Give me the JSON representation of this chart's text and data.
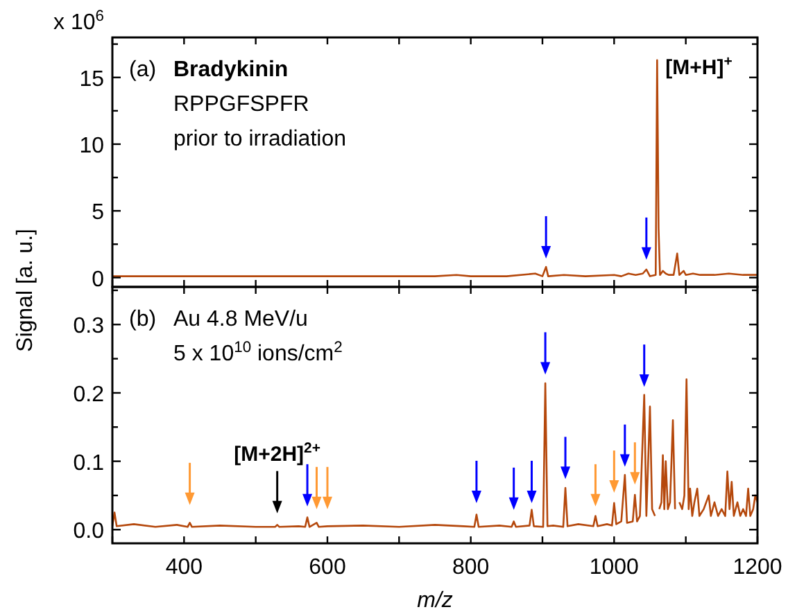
{
  "chart_data": [
    {
      "type": "line",
      "title": "Bradykinin",
      "subtitle": "x 10$^{6}$",
      "ylabel": "Signal [a. u.]",
      "tick_labels": "y",
      "xlim": [
        300,
        1200
      ],
      "ylim": [
        -0.7,
        18
      ],
      "xticks": [
        {
          "value": 300,
          "label": null
        },
        {
          "value": 400,
          "label": null
        },
        {
          "value": 500,
          "label": null
        },
        {
          "value": 600,
          "label": null
        },
        {
          "value": 700,
          "label": null
        },
        {
          "value": 800,
          "label": null
        },
        {
          "value": 900,
          "label": null
        },
        {
          "value": 1000,
          "label": null
        },
        {
          "value": 1100,
          "label": null
        },
        {
          "value": 1200,
          "label": null
        }
      ],
      "yticks": [
        0,
        {
          "value": 2.5,
          "label": null
        },
        5,
        {
          "value": 7.5,
          "label": null
        },
        10,
        {
          "value": 12.5,
          "label": null
        },
        15,
        {
          "value": 17.5,
          "label": null
        }
      ],
      "annotations": [
        "(a)",
        "RPPGFSPFR",
        "prior to irradiation",
        {
          "text": "[M+H]$^{+}$",
          "x": 1060,
          "y": 16.3
        }
      ],
      "series": [
        {
          "color": "#b5480c",
          "x": [
            300,
            400,
            500,
            600,
            700,
            750,
            780,
            800,
            850,
            890,
            900,
            905,
            908,
            930,
            960,
            1000,
            1010,
            1020,
            1030,
            1040,
            1045,
            1050,
            1058,
            1060,
            1061,
            1062,
            1064,
            1068,
            1072,
            1076,
            1083,
            1088,
            1091,
            1097,
            1100,
            1110,
            1120,
            1140,
            1160,
            1180,
            1200
          ],
          "values": [
            0.1,
            0.1,
            0.1,
            0.1,
            0.1,
            0.1,
            0.2,
            0.1,
            0.1,
            0.3,
            0.1,
            0.8,
            0.1,
            0.2,
            0.1,
            0.2,
            0.1,
            0.3,
            0.2,
            0.3,
            0.6,
            0.1,
            0.2,
            16.3,
            10.3,
            3.7,
            0.2,
            0.5,
            0.3,
            0.2,
            0.2,
            1.8,
            0.2,
            0.5,
            0.2,
            0.3,
            0.2,
            0.2,
            0.3,
            0.2,
            0.2
          ]
        },
        {
          "type": "scatter",
          "marker": "triangle",
          "color": "#0000ff",
          "x": [
            905,
            1045
          ],
          "values": [
            1.9,
            1.8
          ]
        }
      ]
    },
    {
      "type": "line",
      "xlabel": "m/z",
      "xlim": [
        300,
        1200
      ],
      "ylim": [
        -0.02,
        0.355
      ],
      "xticks": [
        {
          "value": 300,
          "label": null
        },
        400,
        {
          "value": 500,
          "label": null
        },
        600,
        {
          "value": 700,
          "label": null
        },
        800,
        {
          "value": 900,
          "label": null
        },
        1000,
        {
          "value": 1100,
          "label": null
        },
        1200
      ],
      "yticks": [
        {
          "value": 0,
          "label": "0.0"
        },
        {
          "value": 0.05,
          "label": null
        },
        0.1,
        {
          "value": 0.15,
          "label": null
        },
        0.2,
        {
          "value": 0.25,
          "label": null
        },
        0.3,
        {
          "value": 0.35,
          "label": null
        }
      ],
      "annotations": [
        "(b)",
        "Au 4.8 MeV/u",
        "5 x 10$^{10}$ ions/cm$^{2}$",
        {
          "text": "[M+2H]$^{2+}$",
          "x": 530,
          "y": 0.007
        }
      ],
      "series": [
        {
          "color": "#b5480c",
          "x": [
            300,
            303,
            306,
            330,
            360,
            390,
            405,
            408,
            411,
            450,
            500,
            527,
            530,
            533,
            560,
            569,
            572,
            575,
            585,
            588,
            600,
            650,
            700,
            750,
            790,
            805,
            808,
            811,
            840,
            857,
            860,
            863,
            882,
            885,
            888,
            901,
            904,
            907,
            915,
            929,
            932,
            935,
            950,
            971,
            974,
            977,
            990,
            997,
            1000,
            1003,
            1010,
            1015,
            1018,
            1026,
            1029,
            1032,
            1036,
            1042,
            1045,
            1050,
            1053,
            1057,
            1060,
            1063,
            1066,
            1068,
            1070,
            1072,
            1075,
            1078,
            1082,
            1085,
            1088,
            1091,
            1095,
            1098,
            1101,
            1104,
            1106,
            1109,
            1112,
            1116,
            1119,
            1125,
            1132,
            1135,
            1140,
            1145,
            1150,
            1155,
            1158,
            1161,
            1164,
            1167,
            1172,
            1176,
            1180,
            1184,
            1187,
            1190,
            1194,
            1197,
            1200
          ],
          "values": [
            0.005,
            0.025,
            0.005,
            0.008,
            0.004,
            0.007,
            0.004,
            0.01,
            0.004,
            0.006,
            0.004,
            0.004,
            0.007,
            0.004,
            0.005,
            0.004,
            0.018,
            0.004,
            0.01,
            0.004,
            0.005,
            0.006,
            0.004,
            0.007,
            0.005,
            0.004,
            0.022,
            0.004,
            0.006,
            0.004,
            0.012,
            0.004,
            0.006,
            0.029,
            0.005,
            0.004,
            0.214,
            0.005,
            0.006,
            0.004,
            0.061,
            0.005,
            0.008,
            0.005,
            0.02,
            0.005,
            0.008,
            0.006,
            0.039,
            0.008,
            0.012,
            0.08,
            0.01,
            0.012,
            0.051,
            0.012,
            0.02,
            0.197,
            0.02,
            0.18,
            0.03,
            0.02,
            null,
            0.03,
            0.04,
            0.109,
            0.03,
            0.1,
            0.03,
            0.04,
            0.16,
            0.03,
            null,
            0.04,
            0.03,
            0.05,
            0.22,
            0.03,
            0.06,
            0.02,
            0.04,
            0.06,
            0.02,
            0.03,
            0.05,
            0.02,
            0.04,
            0.02,
            0.03,
            0.02,
            0.085,
            0.03,
            0.07,
            0.02,
            0.04,
            0.02,
            0.03,
            0.02,
            0.06,
            0.02,
            0.03,
            0.05,
            0.04
          ]
        },
        {
          "type": "scatter",
          "marker": "triangle",
          "color": "#0000ff",
          "x": [
            572,
            808,
            860,
            885,
            904,
            932,
            1015,
            1042
          ],
          "values": [
            0.043,
            0.048,
            0.038,
            0.048,
            0.236,
            0.083,
            0.101,
            0.218
          ]
        },
        {
          "type": "scatter",
          "marker": "triangle",
          "color": "#ff9933",
          "x": [
            408,
            585,
            600,
            974,
            1000,
            1029
          ],
          "values": [
            0.045,
            0.039,
            0.039,
            0.043,
            0.063,
            0.075
          ]
        },
        {
          "type": "scatter",
          "marker": "triangle",
          "color": "#000000",
          "x": [
            530
          ],
          "values": [
            0.033
          ]
        }
      ]
    }
  ]
}
